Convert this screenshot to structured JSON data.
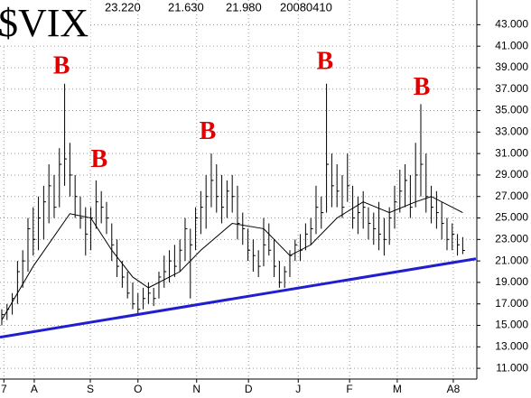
{
  "chart_data": {
    "type": "ohlc",
    "header": {
      "symbol": "$VIX",
      "values": [
        "23.220",
        "21.630",
        "21.980",
        "20080410"
      ]
    },
    "xlim": [
      -0.34,
      90.52
    ],
    "ylim": [
      10,
      45.3
    ],
    "yticks": [
      {
        "value": 11,
        "label": "11.000"
      },
      {
        "value": 13,
        "label": "13.000"
      },
      {
        "value": 15,
        "label": "15.000"
      },
      {
        "value": 17,
        "label": "17.000"
      },
      {
        "value": 19,
        "label": "19.000"
      },
      {
        "value": 21,
        "label": "21.000"
      },
      {
        "value": 23,
        "label": "23.000"
      },
      {
        "value": 25,
        "label": "25.000"
      },
      {
        "value": 27,
        "label": "27.000"
      },
      {
        "value": 29,
        "label": "29.000"
      },
      {
        "value": 31,
        "label": "31.000"
      },
      {
        "value": 33,
        "label": "33.000"
      },
      {
        "value": 35,
        "label": "35.000"
      },
      {
        "value": 37,
        "label": "37.000"
      },
      {
        "value": 39,
        "label": "39.000"
      },
      {
        "value": 41,
        "label": "41.000"
      },
      {
        "value": 43,
        "label": "43.000"
      }
    ],
    "xticks": [
      {
        "value": 0.4,
        "label": "7"
      },
      {
        "value": 6.2,
        "label": "A"
      },
      {
        "value": 16.9,
        "label": "S"
      },
      {
        "value": 26,
        "label": "O"
      },
      {
        "value": 37.2,
        "label": "N"
      },
      {
        "value": 47.1,
        "label": "D"
      },
      {
        "value": 56.6,
        "label": "J"
      },
      {
        "value": 66.4,
        "label": "F"
      },
      {
        "value": 75.5,
        "label": "M"
      },
      {
        "value": 86.2,
        "label": "A8"
      }
    ],
    "grid": true,
    "ohlc": {
      "color": "#000000",
      "high": [
        16.5,
        17,
        18,
        21,
        22,
        25,
        26,
        27,
        28,
        30,
        29,
        31.5,
        37.5,
        32,
        29,
        27,
        26,
        26,
        28.5,
        27.5,
        26.5,
        24.5,
        23,
        21,
        20,
        19,
        18,
        18.5,
        19,
        18.5,
        20,
        21.5,
        22,
        22.5,
        23,
        25,
        24,
        26,
        27.5,
        29,
        31,
        30,
        29,
        28.5,
        29,
        28,
        25.5,
        24,
        23,
        22,
        25,
        24.5,
        23,
        21,
        20.5,
        22,
        23,
        23.5,
        24.5,
        25,
        28,
        27,
        37.5,
        31,
        30,
        29,
        31,
        28,
        27,
        27.5,
        26,
        25.5,
        26.5,
        25,
        26,
        28,
        29.5,
        30,
        29,
        32,
        35.6,
        31,
        28,
        27.5,
        26.5,
        25,
        24.5,
        23.5,
        23.22
      ],
      "low": [
        15,
        15.5,
        16,
        17,
        18.5,
        20,
        21.5,
        22,
        23,
        24.5,
        25,
        26,
        28,
        27,
        25,
        24,
        21.5,
        22,
        24,
        24.5,
        23.5,
        21,
        19.5,
        18.5,
        17.5,
        16.5,
        16,
        16.5,
        17,
        16.8,
        17.5,
        18.5,
        19,
        19.5,
        20,
        21,
        17.5,
        22,
        23.5,
        24,
        26,
        25.5,
        24.5,
        25,
        25.5,
        23,
        22.5,
        21,
        20,
        19.5,
        20.5,
        21.5,
        19.5,
        18.5,
        18.5,
        19.5,
        21,
        21,
        22,
        22.5,
        23.5,
        24,
        25.5,
        26,
        26,
        25,
        26.5,
        24,
        23.5,
        24,
        23,
        22.5,
        22,
        21.5,
        22.5,
        24,
        25.5,
        26,
        25,
        26,
        27,
        25.5,
        24.5,
        24,
        23,
        22,
        22,
        21.5,
        21.63
      ],
      "close": [
        16,
        16.5,
        17.5,
        20,
        21,
        24,
        23,
        25,
        26.5,
        28,
        26,
        30,
        30.5,
        29,
        27,
        25,
        23.5,
        25,
        26.5,
        26,
        25,
        22.5,
        20.5,
        19.5,
        18,
        17,
        16.5,
        17.5,
        18,
        17.5,
        19.5,
        20,
        21,
        20.5,
        22,
        24,
        22.5,
        25,
        26,
        27,
        28.5,
        27,
        26,
        27.5,
        27,
        24.5,
        24,
        22,
        21.5,
        20.5,
        22.5,
        22,
        20.5,
        19,
        20,
        21.5,
        22.5,
        22,
        23.5,
        24,
        26,
        25.5,
        30,
        28,
        27.5,
        26,
        28,
        25,
        25.5,
        26,
        24.5,
        24,
        23.5,
        23,
        25,
        26.5,
        27.5,
        28.5,
        26,
        29,
        30,
        27,
        26,
        25.5,
        24.5,
        23,
        23.5,
        22.5,
        21.98
      ]
    },
    "moving_average": {
      "color": "#000000",
      "x": [
        0,
        6,
        13,
        17,
        21,
        25,
        28,
        34,
        38,
        44,
        50,
        55,
        59,
        64,
        69,
        74,
        79,
        82,
        88
      ],
      "values": [
        15.5,
        20.5,
        25.4,
        25,
        22,
        19.5,
        18.5,
        20,
        22,
        24.5,
        24,
        21.5,
        22.5,
        25,
        26.5,
        25.5,
        26.5,
        27,
        25.5
      ]
    },
    "trendline": {
      "color": "#1f1fd0",
      "x": [
        -0.34,
        90.52
      ],
      "values": [
        13.9,
        21.2
      ]
    },
    "annotations": [
      {
        "text": "B",
        "x": 11.4,
        "y": 39
      },
      {
        "text": "B",
        "x": 18.6,
        "y": 30.3
      },
      {
        "text": "B",
        "x": 39.3,
        "y": 32.9
      },
      {
        "text": "B",
        "x": 61.7,
        "y": 39.4
      },
      {
        "text": "B",
        "x": 80.2,
        "y": 37
      }
    ]
  }
}
